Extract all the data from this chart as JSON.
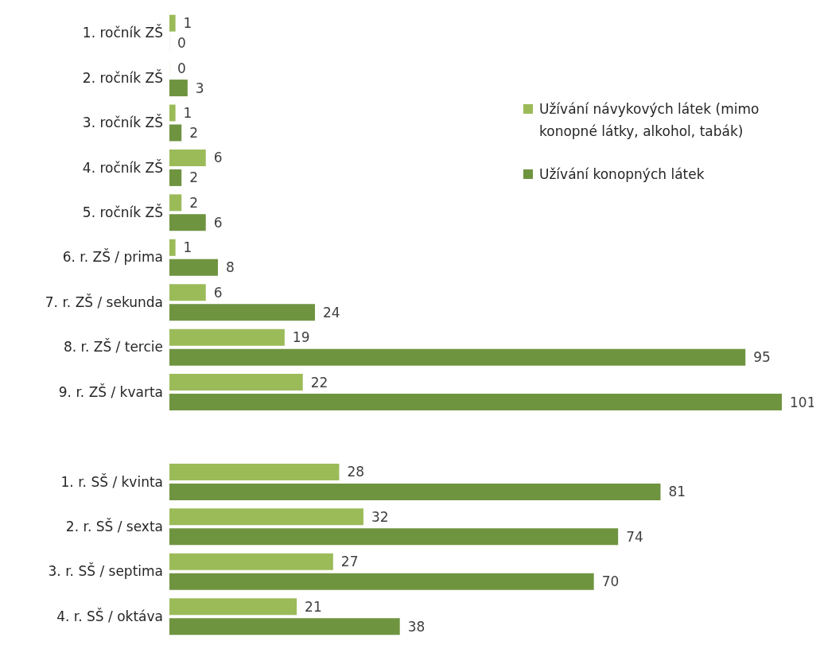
{
  "chart_data": {
    "type": "bar",
    "orientation": "horizontal",
    "categories": [
      "1. ročník ZŠ",
      "2. ročník ZŠ",
      "3. ročník ZŠ",
      "4. ročník ZŠ",
      "5. ročník ZŠ",
      "6. r. ZŠ / prima",
      "7. r. ZŠ / sekunda",
      "8. r. ZŠ / tercie",
      "9. r. ZŠ / kvarta",
      null,
      "1. r. SŠ / kvinta",
      "2. r. SŠ / sexta",
      "3. r. SŠ / septima",
      "4. r. SŠ / oktáva"
    ],
    "series": [
      {
        "name": "Užívání návykových látek (mimo konopné látky, alkohol, tabák)",
        "color": "#9bbb59",
        "values": [
          1,
          0,
          1,
          6,
          2,
          1,
          6,
          19,
          22,
          null,
          28,
          32,
          27,
          21
        ]
      },
      {
        "name": "Užívání konopných látek",
        "color": "#6f9440",
        "values": [
          0,
          3,
          2,
          2,
          6,
          8,
          24,
          95,
          101,
          null,
          81,
          74,
          70,
          38
        ]
      }
    ],
    "data_labels": true,
    "legend": "top right",
    "grid": false
  }
}
